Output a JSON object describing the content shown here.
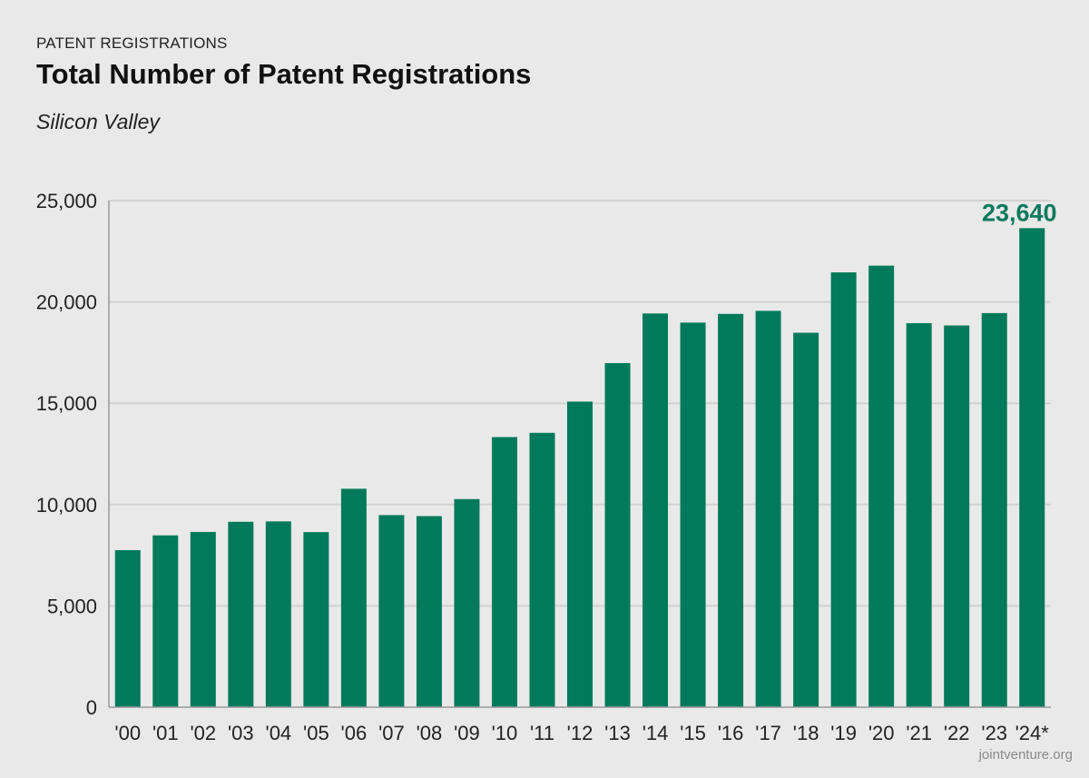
{
  "header": {
    "eyebrow": "PATENT REGISTRATIONS",
    "title": "Total Number of Patent Registrations",
    "subtitle": "Silicon Valley"
  },
  "footer": {
    "source": "jointventure.org"
  },
  "colors": {
    "bar": "#007a5a",
    "callout": "#0a7a5b",
    "grid": "#d2d2d2",
    "axis": "#999999",
    "background": "#e9e9ea"
  },
  "chart_data": {
    "type": "bar",
    "title": "Total Number of Patent Registrations",
    "subtitle": "Silicon Valley",
    "xlabel": "",
    "ylabel": "",
    "ylim": [
      0,
      25000
    ],
    "yticks": [
      0,
      5000,
      10000,
      15000,
      20000,
      25000
    ],
    "ytick_labels": [
      "0",
      "5,000",
      "10,000",
      "15,000",
      "20,000",
      "25,000"
    ],
    "grid": true,
    "categories": [
      "'00",
      "'01",
      "'02",
      "'03",
      "'04",
      "'05",
      "'06",
      "'07",
      "'08",
      "'09",
      "'10",
      "'11",
      "'12",
      "'13",
      "'14",
      "'15",
      "'16",
      "'17",
      "'18",
      "'19",
      "'20",
      "'21",
      "'22",
      "'23",
      "'24*"
    ],
    "values": [
      7750,
      8480,
      8650,
      9150,
      9170,
      8640,
      10780,
      9480,
      9430,
      10270,
      13330,
      13540,
      15080,
      16980,
      19430,
      18980,
      19410,
      19560,
      18480,
      21460,
      21790,
      18950,
      18840,
      19450,
      23640
    ],
    "annotations": [
      {
        "category": "'24*",
        "text": "23,640"
      }
    ]
  }
}
